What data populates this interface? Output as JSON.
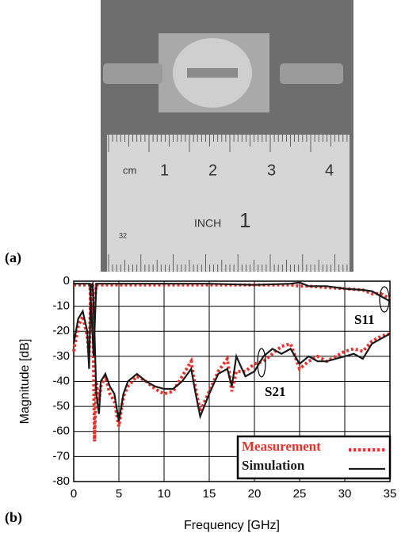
{
  "panels": {
    "a": "(a)",
    "b": "(b)"
  },
  "photo": {
    "cm_unit": "cm",
    "cm_numbers": [
      "1",
      "2",
      "3",
      "4"
    ],
    "inch_unit": "INCH",
    "inch_number": "1",
    "small_mark": "32"
  },
  "chart_data": {
    "type": "line",
    "xlabel": "Frequency [GHz]",
    "ylabel": "Magnitude [dB]",
    "xlim": [
      0,
      35
    ],
    "ylim": [
      -80,
      0
    ],
    "xticks": [
      0,
      5,
      10,
      15,
      20,
      25,
      30,
      35
    ],
    "yticks": [
      0,
      -10,
      -20,
      -30,
      -40,
      -50,
      -60,
      -70,
      -80
    ],
    "grid": true,
    "legend": "lower right",
    "annotations": [
      "S11",
      "S21"
    ],
    "series": [
      {
        "name": "Measurement",
        "color": "#e8312a",
        "style": "dotted",
        "curves": [
          {
            "x": [
              0,
              0.5,
              1,
              1.5,
              1.7,
              1.9,
              2.1,
              2.3,
              2.5,
              2.8,
              3,
              3.5,
              4,
              4.5,
              5,
              5.5,
              6,
              7,
              8,
              9,
              10,
              11,
              12,
              13,
              13.5,
              14,
              15,
              16,
              17,
              17.5,
              18,
              19,
              20,
              21,
              22,
              23,
              24,
              25,
              26,
              27,
              28,
              29,
              30,
              31,
              32,
              33,
              34,
              35
            ],
            "values": [
              -28,
              -18,
              -14,
              -22,
              -30,
              -2,
              -2,
              -64,
              -40,
              -48,
              -42,
              -38,
              -45,
              -48,
              -58,
              -46,
              -42,
              -38,
              -40,
              -43,
              -45,
              -44,
              -38,
              -32,
              -43,
              -52,
              -44,
              -36,
              -31,
              -44,
              -36,
              -36,
              -33,
              -32,
              -29,
              -26,
              -25,
              -35,
              -32,
              -30,
              -32,
              -30,
              -28,
              -27,
              -28,
              -24,
              -22,
              -21
            ]
          },
          {
            "x": [
              0,
              1,
              1.8,
              2.0,
              2.2,
              2.5,
              5,
              10,
              15,
              20,
              24,
              25,
              26,
              28,
              30,
              32,
              33,
              34,
              35
            ],
            "values": [
              -1.5,
              -1.5,
              -1.5,
              -20,
              -12,
              -1.5,
              -1.5,
              -1.5,
              -1.5,
              -1.5,
              -1.5,
              -2,
              -2,
              -2.5,
              -3,
              -3.5,
              -5,
              -5,
              -7
            ]
          }
        ]
      },
      {
        "name": "Simulation",
        "color": "#1a1a1a",
        "style": "solid",
        "curves": [
          {
            "x": [
              0,
              0.5,
              1,
              1.5,
              1.7,
              1.9,
              2.1,
              2.3,
              2.5,
              2.8,
              3,
              3.5,
              4,
              4.5,
              5,
              5.5,
              6,
              7,
              8,
              9,
              10,
              11,
              12,
              13,
              13.5,
              14,
              15,
              16,
              17,
              17.5,
              18,
              19,
              20,
              21,
              22,
              23,
              24,
              25,
              26,
              27,
              28,
              29,
              30,
              31,
              32,
              33,
              34,
              35
            ],
            "values": [
              -25,
              -15,
              -12,
              -20,
              -35,
              -2,
              -1,
              -20,
              -45,
              -53,
              -40,
              -37,
              -42,
              -45,
              -56,
              -45,
              -40,
              -37,
              -40,
              -42,
              -43,
              -43,
              -40,
              -35,
              -45,
              -54,
              -45,
              -37,
              -35,
              -42,
              -30,
              -38,
              -36,
              -30,
              -27,
              -29,
              -27,
              -33,
              -30,
              -32,
              -32,
              -31,
              -30,
              -29,
              -31,
              -25,
              -23,
              -21
            ]
          },
          {
            "x": [
              0,
              1,
              1.8,
              2.0,
              2.2,
              2.5,
              5,
              10,
              15,
              20,
              24,
              25,
              26,
              28,
              30,
              32,
              33,
              34,
              35
            ],
            "values": [
              -1,
              -1,
              -1,
              -15,
              -30,
              -1,
              -1,
              -1,
              -1,
              -1.5,
              -1,
              -0.5,
              -2,
              -2,
              -3,
              -3.5,
              -4,
              -6,
              -8
            ]
          }
        ]
      }
    ]
  }
}
